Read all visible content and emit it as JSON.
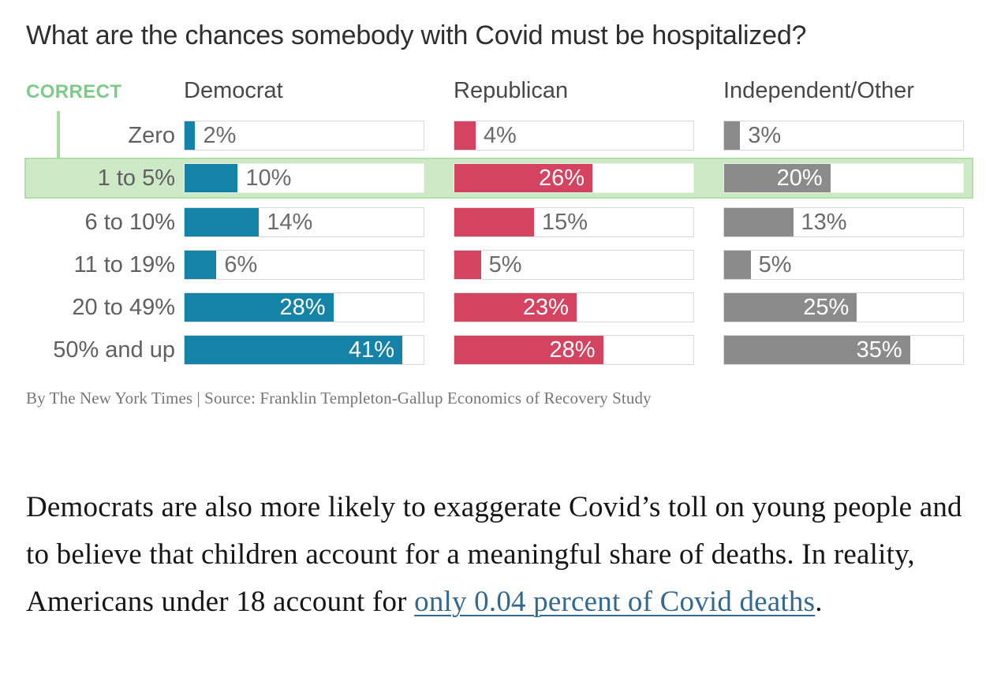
{
  "chart_data": {
    "type": "bar",
    "title": "What are the chances somebody with Covid must be hospitalized?",
    "categories": [
      "Zero",
      "1 to 5%",
      "6 to 10%",
      "11 to 19%",
      "20 to 49%",
      "50% and up"
    ],
    "series": [
      {
        "name": "Democrat",
        "color": "#1583a7",
        "values": [
          2,
          10,
          14,
          6,
          28,
          41
        ]
      },
      {
        "name": "Republican",
        "color": "#d4435f",
        "values": [
          4,
          26,
          15,
          5,
          23,
          28
        ]
      },
      {
        "name": "Independent/Other",
        "color": "#8b8b8b",
        "values": [
          3,
          20,
          13,
          5,
          25,
          35
        ]
      }
    ],
    "xlabel": "",
    "ylabel": "",
    "xlim": [
      0,
      45
    ],
    "grid": false,
    "legend_position": "none",
    "value_suffix": "%",
    "inside_label_threshold": 20,
    "correct_answer": {
      "label": "CORRECT",
      "category": "1 to 5%",
      "category_index": 1,
      "highlight_fill": "#cde9c5",
      "highlight_border": "#b0dfab",
      "annotation_color": "#7ecb88"
    }
  },
  "attribution": {
    "text": "By The New York Times | Source: Franklin Templeton-Gallup Economics of Recovery Study"
  },
  "article": {
    "paragraph_before_link": "Democrats are also more likely to exaggerate Covid’s toll on young people and to believe that children account for a meaningful share of deaths. In reality, Americans under 18 account for ",
    "link_text": "only 0.04 percent of Covid deaths",
    "paragraph_after_link": "."
  }
}
